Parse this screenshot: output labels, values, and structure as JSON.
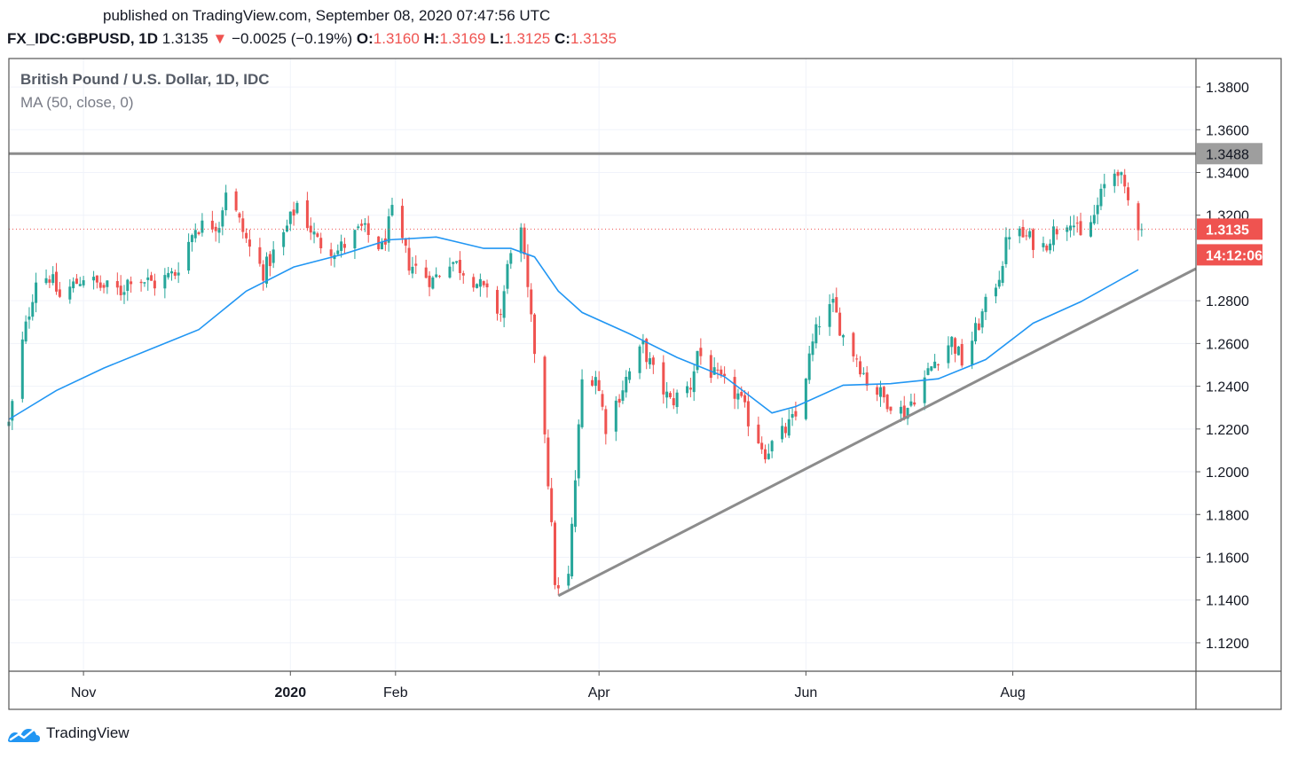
{
  "header": {
    "published": "published on TradingView.com, September 08, 2020 07:47:56 UTC",
    "symbol": "FX_IDC:GBPUSD, 1D",
    "last": "1.3135",
    "change": "−0.0025 (−0.19%)",
    "open_label": "O:",
    "open": "1.3160",
    "high_label": "H:",
    "high": "1.3169",
    "low_label": "L:",
    "low": "1.3125",
    "close_label": "C:",
    "close": "1.3135"
  },
  "legend": {
    "title": "British Pound / U.S. Dollar, 1D, IDC",
    "ma": "MA (50, close, 0)"
  },
  "brand": {
    "name": "TradingView"
  },
  "colors": {
    "up": "#26a69a",
    "down": "#ef5350",
    "ma": "#2196f3",
    "line": "#8c8c8c",
    "grid": "#f0f3fa"
  },
  "chart_data": {
    "type": "candlestick",
    "title": "British Pound / U.S. Dollar, 1D, IDC",
    "x_range": [
      "2019-10-10",
      "2020-09-24"
    ],
    "ylim": [
      1.1067,
      1.3933
    ],
    "y_ticks": [
      "1.3800",
      "1.3600",
      "1.3400",
      "1.3200",
      "1.2800",
      "1.2600",
      "1.2400",
      "1.2200",
      "1.2000",
      "1.1800",
      "1.1600",
      "1.1400",
      "1.1200"
    ],
    "x_ticks": [
      {
        "label": "Nov",
        "date": "2019-11-01",
        "bold": false
      },
      {
        "label": "2020",
        "date": "2020-01-01",
        "bold": true
      },
      {
        "label": "Feb",
        "date": "2020-02-01",
        "bold": false
      },
      {
        "label": "Apr",
        "date": "2020-04-01",
        "bold": false
      },
      {
        "label": "Jun",
        "date": "2020-06-01",
        "bold": false
      },
      {
        "label": "Aug",
        "date": "2020-08-01",
        "bold": false
      }
    ],
    "horizontal_line": {
      "value": 1.3488,
      "label": "1.3488"
    },
    "last_price": {
      "value": 1.3135,
      "label": "1.3135",
      "countdown": "14:12:06"
    },
    "trendline": [
      {
        "date": "2020-03-20",
        "value": 1.142
      },
      {
        "date": "2020-09-24",
        "value": 1.295
      }
    ],
    "moving_average": {
      "name": "MA (50, close, 0)",
      "points": [
        [
          "2019-10-10",
          1.2245
        ],
        [
          "2019-10-24",
          1.238
        ],
        [
          "2019-11-07",
          1.2485
        ],
        [
          "2019-11-21",
          1.2575
        ],
        [
          "2019-12-05",
          1.2665
        ],
        [
          "2019-12-19",
          1.2845
        ],
        [
          "2020-01-02",
          1.2958
        ],
        [
          "2020-01-16",
          1.3015
        ],
        [
          "2020-01-30",
          1.3085
        ],
        [
          "2020-02-13",
          1.3098
        ],
        [
          "2020-02-27",
          1.3045
        ],
        [
          "2020-03-06",
          1.3045
        ],
        [
          "2020-03-13",
          1.3005
        ],
        [
          "2020-03-20",
          1.2845
        ],
        [
          "2020-03-27",
          1.2745
        ],
        [
          "2020-04-10",
          1.2645
        ],
        [
          "2020-04-24",
          1.2535
        ],
        [
          "2020-05-08",
          1.2445
        ],
        [
          "2020-05-22",
          1.2275
        ],
        [
          "2020-05-29",
          1.2305
        ],
        [
          "2020-06-12",
          1.2405
        ],
        [
          "2020-06-26",
          1.2412
        ],
        [
          "2020-07-10",
          1.2435
        ],
        [
          "2020-07-24",
          1.2525
        ],
        [
          "2020-08-07",
          1.2695
        ],
        [
          "2020-08-21",
          1.2795
        ],
        [
          "2020-09-07",
          1.2945
        ]
      ]
    },
    "close_path": [
      [
        "2019-10-10",
        1.222
      ],
      [
        "2019-10-14",
        1.26
      ],
      [
        "2019-10-18",
        1.2905
      ],
      [
        "2019-10-22",
        1.2915
      ],
      [
        "2019-10-25",
        1.2815
      ],
      [
        "2019-11-01",
        1.2915
      ],
      [
        "2019-11-06",
        1.2865
      ],
      [
        "2019-11-12",
        1.2845
      ],
      [
        "2019-11-15",
        1.2915
      ],
      [
        "2019-11-22",
        1.288
      ],
      [
        "2019-11-28",
        1.293
      ],
      [
        "2019-12-04",
        1.3145
      ],
      [
        "2019-12-11",
        1.3165
      ],
      [
        "2019-12-13",
        1.3325
      ],
      [
        "2019-12-20",
        1.3045
      ],
      [
        "2019-12-24",
        1.2935
      ],
      [
        "2019-12-30",
        1.3105
      ],
      [
        "2020-01-03",
        1.3255
      ],
      [
        "2020-01-09",
        1.3075
      ],
      [
        "2020-01-15",
        1.3035
      ],
      [
        "2020-01-22",
        1.3135
      ],
      [
        "2020-01-28",
        1.3045
      ],
      [
        "2020-01-31",
        1.3205
      ],
      [
        "2020-02-05",
        1.2975
      ],
      [
        "2020-02-12",
        1.2895
      ],
      [
        "2020-02-17",
        1.2995
      ],
      [
        "2020-02-24",
        1.2905
      ],
      [
        "2020-02-28",
        1.2825
      ],
      [
        "2020-03-03",
        1.2735
      ],
      [
        "2020-03-06",
        1.3055
      ],
      [
        "2020-03-09",
        1.3115
      ],
      [
        "2020-03-12",
        1.2695
      ],
      [
        "2020-03-16",
        1.2195
      ],
      [
        "2020-03-19",
        1.1495
      ],
      [
        "2020-03-20",
        1.1435
      ],
      [
        "2020-03-23",
        1.1505
      ],
      [
        "2020-03-27",
        1.2425
      ],
      [
        "2020-03-31",
        1.2455
      ],
      [
        "2020-04-03",
        1.2215
      ],
      [
        "2020-04-09",
        1.2435
      ],
      [
        "2020-04-14",
        1.2585
      ],
      [
        "2020-04-17",
        1.2465
      ],
      [
        "2020-04-22",
        1.2325
      ],
      [
        "2020-04-28",
        1.2405
      ],
      [
        "2020-04-30",
        1.2565
      ],
      [
        "2020-05-05",
        1.2445
      ],
      [
        "2020-05-12",
        1.2355
      ],
      [
        "2020-05-15",
        1.2245
      ],
      [
        "2020-05-20",
        1.2095
      ],
      [
        "2020-05-25",
        1.2175
      ],
      [
        "2020-05-29",
        1.2255
      ],
      [
        "2020-06-03",
        1.2595
      ],
      [
        "2020-06-05",
        1.2705
      ],
      [
        "2020-06-09",
        1.2775
      ],
      [
        "2020-06-12",
        1.2635
      ],
      [
        "2020-06-16",
        1.2535
      ],
      [
        "2020-06-19",
        1.2425
      ],
      [
        "2020-06-24",
        1.2345
      ],
      [
        "2020-06-26",
        1.2325
      ],
      [
        "2020-06-30",
        1.2275
      ],
      [
        "2020-07-06",
        1.2435
      ],
      [
        "2020-07-10",
        1.2545
      ],
      [
        "2020-07-14",
        1.2615
      ],
      [
        "2020-07-17",
        1.2515
      ],
      [
        "2020-07-21",
        1.2655
      ],
      [
        "2020-07-24",
        1.2775
      ],
      [
        "2020-07-28",
        1.2925
      ],
      [
        "2020-07-31",
        1.3125
      ],
      [
        "2020-08-05",
        1.3095
      ],
      [
        "2020-08-10",
        1.3055
      ],
      [
        "2020-08-13",
        1.3125
      ],
      [
        "2020-08-18",
        1.3195
      ],
      [
        "2020-08-21",
        1.3085
      ],
      [
        "2020-08-25",
        1.3195
      ],
      [
        "2020-08-28",
        1.3335
      ],
      [
        "2020-09-01",
        1.3425
      ],
      [
        "2020-09-03",
        1.3295
      ],
      [
        "2020-09-07",
        1.3165
      ],
      [
        "2020-09-08",
        1.3135
      ]
    ]
  }
}
